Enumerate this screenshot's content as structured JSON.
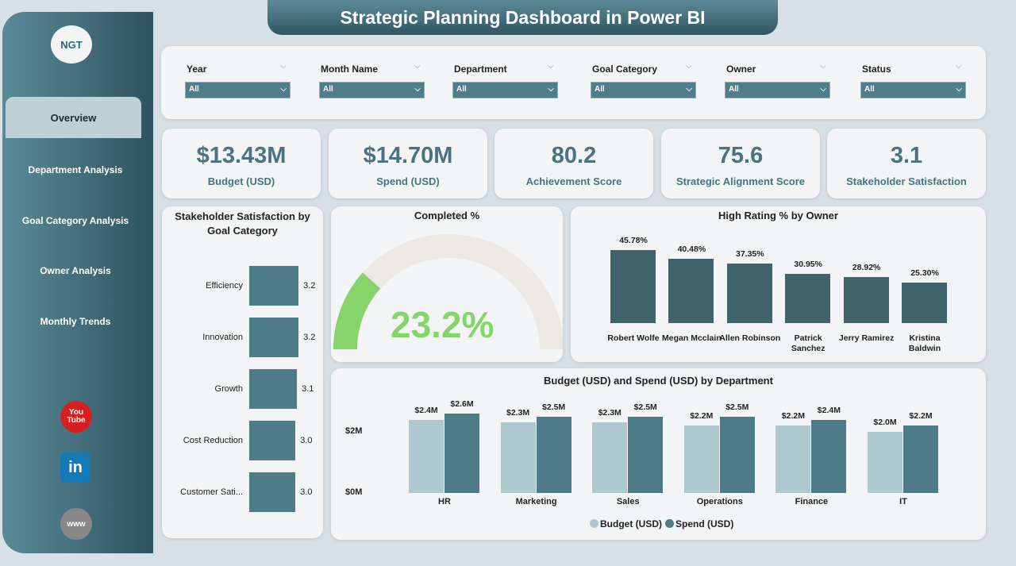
{
  "title": "Strategic Planning Dashboard in Power BI",
  "logo_text": "NGT",
  "nav": [
    {
      "label": "Overview",
      "active": true
    },
    {
      "label": "Department Analysis"
    },
    {
      "label": "Goal Category Analysis"
    },
    {
      "label": "Owner Analysis"
    },
    {
      "label": "Monthly Trends"
    }
  ],
  "social": {
    "youtube": "You Tube",
    "linkedin": "in",
    "web": "www"
  },
  "filters": [
    {
      "label": "Year",
      "value": "All"
    },
    {
      "label": "Month Name",
      "value": "All"
    },
    {
      "label": "Department",
      "value": "All"
    },
    {
      "label": "Goal Category",
      "value": "All"
    },
    {
      "label": "Owner",
      "value": "All"
    },
    {
      "label": "Status",
      "value": "All"
    }
  ],
  "kpis": [
    {
      "value": "$13.43M",
      "label": "Budget (USD)"
    },
    {
      "value": "$14.70M",
      "label": "Spend (USD)"
    },
    {
      "value": "80.2",
      "label": "Achievement Score"
    },
    {
      "value": "75.6",
      "label": "Strategic Alignment Score"
    },
    {
      "value": "3.1",
      "label": "Stakeholder Satisfaction"
    }
  ],
  "colors": {
    "accent": "#4a7380",
    "budget": "#aec8cf",
    "spend": "#4d7b88",
    "bar": "#4e7c88",
    "owner_bar": "#3f626b",
    "gauge": "#86d46a"
  },
  "chart_data": [
    {
      "type": "bar",
      "orientation": "horizontal",
      "title": "Stakeholder Satisfaction by Goal Category",
      "categories": [
        "Efficiency",
        "Innovation",
        "Growth",
        "Cost Reduction",
        "Customer Sati..."
      ],
      "values": [
        3.2,
        3.2,
        3.1,
        3.0,
        3.0
      ],
      "labels": [
        "3.2",
        "3.2",
        "3.1",
        "3.0",
        "3.0"
      ]
    },
    {
      "type": "gauge",
      "title": "Completed %",
      "value": 23.2,
      "label": "23.2%",
      "range": [
        0,
        100
      ]
    },
    {
      "type": "bar",
      "title": "High Rating % by Owner",
      "categories": [
        "Robert Wolfe",
        "Megan Mcclain",
        "Allen Robinson",
        "Patrick Sanchez",
        "Jerry Ramirez",
        "Kristina Baldwin"
      ],
      "values": [
        45.78,
        40.48,
        37.35,
        30.95,
        28.92,
        25.3
      ],
      "labels": [
        "45.78%",
        "40.48%",
        "37.35%",
        "30.95%",
        "28.92%",
        "25.30%"
      ]
    },
    {
      "type": "bar",
      "title": "Budget (USD) and Spend (USD) by Department",
      "categories": [
        "HR",
        "Marketing",
        "Sales",
        "Operations",
        "Finance",
        "IT"
      ],
      "yticks": [
        "$0M",
        "$2M"
      ],
      "legend": "bottom",
      "series": [
        {
          "name": "Budget (USD)",
          "values": [
            2.4,
            2.3,
            2.3,
            2.2,
            2.2,
            2.0
          ],
          "labels": [
            "$2.4M",
            "$2.3M",
            "$2.3M",
            "$2.2M",
            "$2.2M",
            "$2.0M"
          ]
        },
        {
          "name": "Spend (USD)",
          "values": [
            2.6,
            2.5,
            2.5,
            2.5,
            2.4,
            2.2
          ],
          "labels": [
            "$2.6M",
            "$2.5M",
            "$2.5M",
            "$2.5M",
            "$2.4M",
            "$2.2M"
          ]
        }
      ]
    }
  ]
}
